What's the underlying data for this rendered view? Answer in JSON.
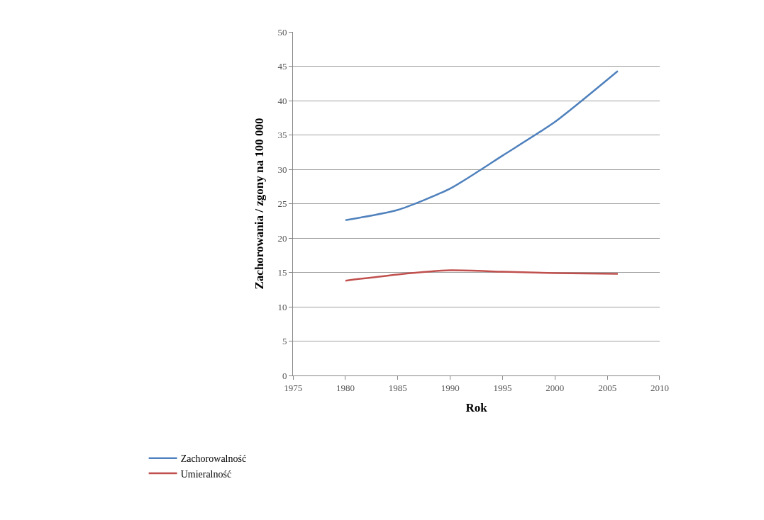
{
  "chart_data": {
    "type": "line",
    "xlabel": "Rok",
    "ylabel": "Zachorowania / zgony na 100 000",
    "x": [
      1980,
      1985,
      1990,
      1995,
      2000,
      2006
    ],
    "series": [
      {
        "name": "Zachorowalność",
        "color": "#4f81bd",
        "values": [
          22.6,
          24.1,
          27.2,
          32.0,
          36.9,
          44.3
        ]
      },
      {
        "name": "Umieralność",
        "color": "#c0504d",
        "values": [
          13.8,
          14.7,
          15.3,
          15.1,
          14.9,
          14.8
        ]
      }
    ],
    "xlim": [
      1975,
      2010
    ],
    "xticks": [
      1975,
      1980,
      1985,
      1990,
      1995,
      2000,
      2005,
      2010
    ],
    "ylim": [
      0,
      50
    ],
    "yticks": [
      0,
      5,
      10,
      15,
      20,
      25,
      30,
      35,
      40,
      45,
      50
    ],
    "grid": "y",
    "legend": "bottom left",
    "marker": "none",
    "line_style": "solid"
  }
}
